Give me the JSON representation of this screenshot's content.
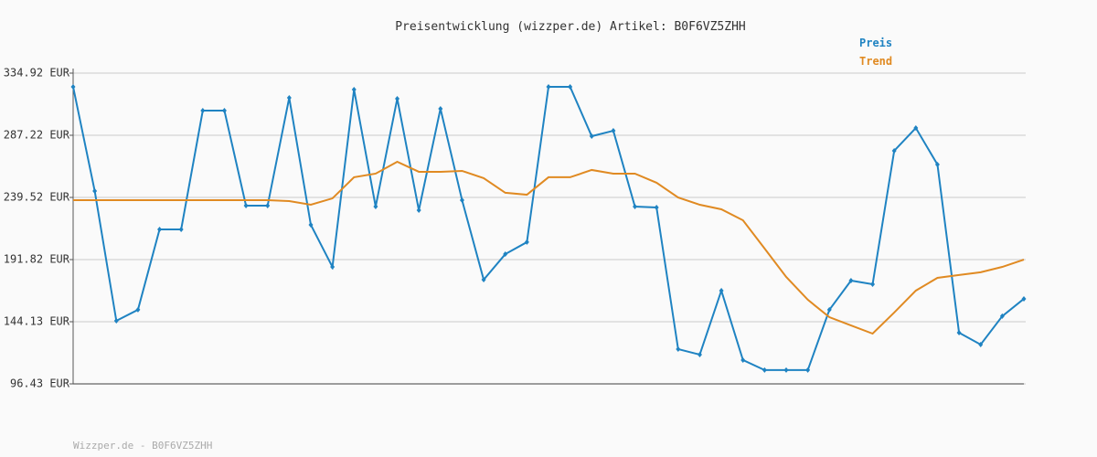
{
  "chart_data": {
    "type": "line",
    "title": "Preisentwicklung (wizzper.de) Artikel: B0F6VZ5ZHH",
    "footer": "Wizzper.de - B0F6VZ5ZHH",
    "ylim": [
      96.43,
      334.92
    ],
    "yticks": [
      {
        "value": 96.43,
        "label": "96.43 EUR"
      },
      {
        "value": 144.13,
        "label": "144.13 EUR"
      },
      {
        "value": 191.82,
        "label": "191.82 EUR"
      },
      {
        "value": 239.52,
        "label": "239.52 EUR"
      },
      {
        "value": 287.22,
        "label": "287.22 EUR"
      },
      {
        "value": 334.92,
        "label": "334.92 EUR"
      }
    ],
    "grid": true,
    "series": [
      {
        "name": "Preis",
        "color": "#1f83c2",
        "markers": true,
        "values": [
          324.4,
          244.4,
          144.8,
          153.3,
          215.0,
          215.0,
          306.2,
          306.2,
          233.2,
          233.2,
          316.0,
          218.5,
          186.2,
          322.3,
          232.5,
          315.3,
          229.7,
          307.6,
          237.4,
          176.4,
          196.0,
          205.2,
          324.4,
          324.4,
          286.5,
          290.7,
          232.5,
          231.8,
          123.1,
          118.9,
          168.0,
          114.7,
          107.0,
          107.0,
          107.0,
          153.3,
          175.7,
          172.9,
          275.3,
          292.8,
          264.8,
          135.7,
          126.6,
          148.4,
          161.7
        ]
      },
      {
        "name": "Trend",
        "color": "#e08a22",
        "markers": false,
        "values": [
          237.4,
          237.4,
          237.4,
          237.4,
          237.4,
          237.4,
          237.4,
          237.4,
          237.4,
          237.4,
          236.7,
          233.9,
          238.8,
          255.0,
          257.8,
          266.9,
          259.2,
          259.2,
          259.9,
          254.3,
          243.1,
          241.6,
          255.0,
          255.0,
          260.6,
          257.8,
          257.8,
          250.8,
          239.5,
          233.9,
          230.4,
          222.0,
          200.3,
          178.5,
          161.0,
          147.6,
          141.3,
          135.0,
          151.2,
          168.0,
          177.8,
          180.0,
          182.1,
          186.2,
          191.8
        ]
      }
    ]
  }
}
